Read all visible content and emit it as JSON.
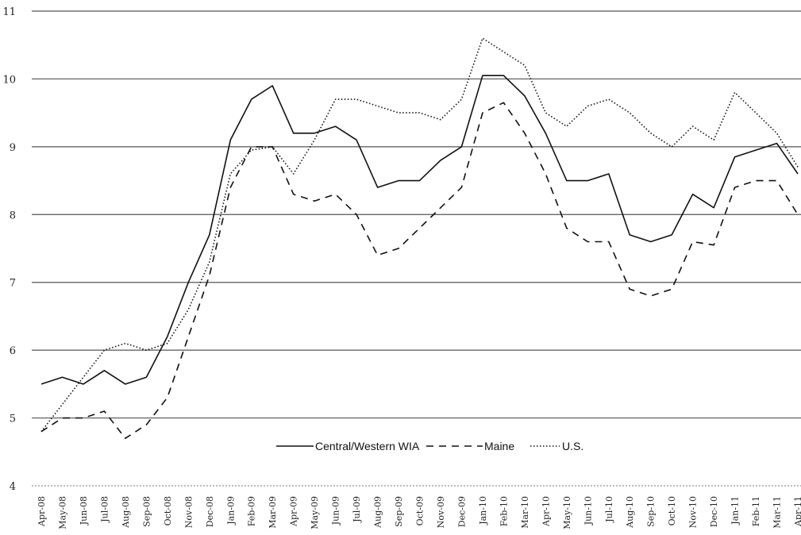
{
  "chart_data": {
    "type": "line",
    "y_ticks": [
      "4",
      "5",
      "6",
      "7",
      "8",
      "9",
      "10",
      "11"
    ],
    "ylim": [
      4,
      11
    ],
    "grid": true,
    "legend_placement": "bottom-right inside plot",
    "categories": [
      "Apr-08",
      "May-08",
      "Jun-08",
      "Jul-08",
      "Aug-08",
      "Sep-08",
      "Oct-08",
      "Nov-08",
      "Dec-08",
      "Jan-09",
      "Feb-09",
      "Mar-09",
      "Apr-09",
      "May-09",
      "Jun-09",
      "Jul-09",
      "Aug-09",
      "Sep-09",
      "Oct-09",
      "Nov-09",
      "Dec-09",
      "Jan-10",
      "Feb-10",
      "Mar-10",
      "Apr-10",
      "May-10",
      "Jun-10",
      "Jul-10",
      "Aug-10",
      "Sep-10",
      "Oct-10",
      "Nov-10",
      "Dec-10",
      "Jan-11",
      "Feb-11",
      "Mar-11",
      "Apr-11"
    ],
    "series": [
      {
        "name": "Central/Western WIA",
        "style": "solid",
        "color": "#111111",
        "values": [
          5.5,
          5.6,
          5.5,
          5.7,
          5.5,
          5.6,
          6.2,
          7.0,
          7.7,
          9.1,
          9.7,
          9.9,
          9.2,
          9.2,
          9.3,
          9.1,
          8.4,
          8.5,
          8.5,
          8.8,
          9.0,
          10.05,
          10.05,
          9.75,
          9.2,
          8.5,
          8.5,
          8.6,
          7.7,
          7.6,
          7.7,
          8.3,
          8.1,
          8.85,
          8.95,
          9.05,
          8.6
        ]
      },
      {
        "name": "Maine",
        "style": "dashed",
        "color": "#111111",
        "values": [
          4.8,
          5.0,
          5.0,
          5.1,
          4.7,
          4.9,
          5.3,
          6.2,
          7.1,
          8.4,
          9.0,
          9.0,
          8.3,
          8.2,
          8.3,
          8.0,
          7.4,
          7.5,
          7.8,
          8.1,
          8.4,
          9.5,
          9.65,
          9.2,
          8.6,
          7.8,
          7.6,
          7.6,
          6.9,
          6.8,
          6.9,
          7.6,
          7.55,
          8.4,
          8.5,
          8.5,
          8.0
        ]
      },
      {
        "name": "U.S.",
        "style": "dotted",
        "color": "#111111",
        "values": [
          4.8,
          5.2,
          5.6,
          6.0,
          6.1,
          6.0,
          6.1,
          6.6,
          7.3,
          8.6,
          8.95,
          9.0,
          8.6,
          9.1,
          9.7,
          9.7,
          9.6,
          9.5,
          9.5,
          9.4,
          9.7,
          10.6,
          10.4,
          10.2,
          9.5,
          9.3,
          9.6,
          9.7,
          9.5,
          9.2,
          9.0,
          9.3,
          9.1,
          9.8,
          9.5,
          9.2,
          8.7
        ]
      }
    ]
  }
}
